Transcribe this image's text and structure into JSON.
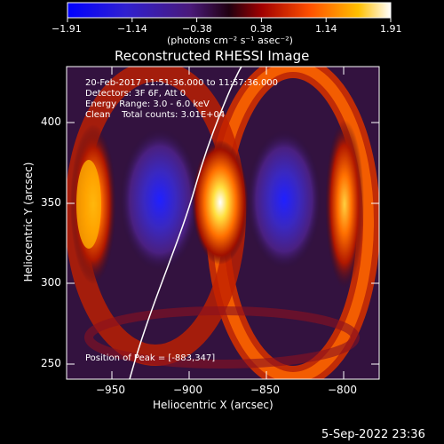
{
  "colorbar": {
    "tick_labels": [
      "−1.91",
      "−1.14",
      "−0.38",
      "0.38",
      "1.14",
      "1.91"
    ],
    "unit_label": "(photons cm⁻² s⁻¹ asec⁻²)",
    "colors": [
      "#0000ff",
      "#3020d0",
      "#5a20a0",
      "#ff4000",
      "#ffb000",
      "#ffffff"
    ]
  },
  "plot": {
    "title": "Reconstructed RHESSI Image",
    "xlabel": "Heliocentric X (arcsec)",
    "ylabel": "Heliocentric Y (arcsec)",
    "x_ticks": [
      "−950",
      "−900",
      "−850",
      "−800"
    ],
    "y_ticks": [
      "400",
      "350",
      "300",
      "250"
    ],
    "annotations": {
      "time_range": "20-Feb-2017 11:51:36.000 to 11:57:36.000",
      "detectors": "Detectors: 3F 6F, Att 0",
      "energy": "Energy Range: 3.0 - 6.0 keV",
      "clean": "Clean    Total counts: 3.01E+04",
      "peak": "Position of Peak = [-883,347]"
    }
  },
  "footer": {
    "timestamp": "5-Sep-2022 23:36"
  }
}
